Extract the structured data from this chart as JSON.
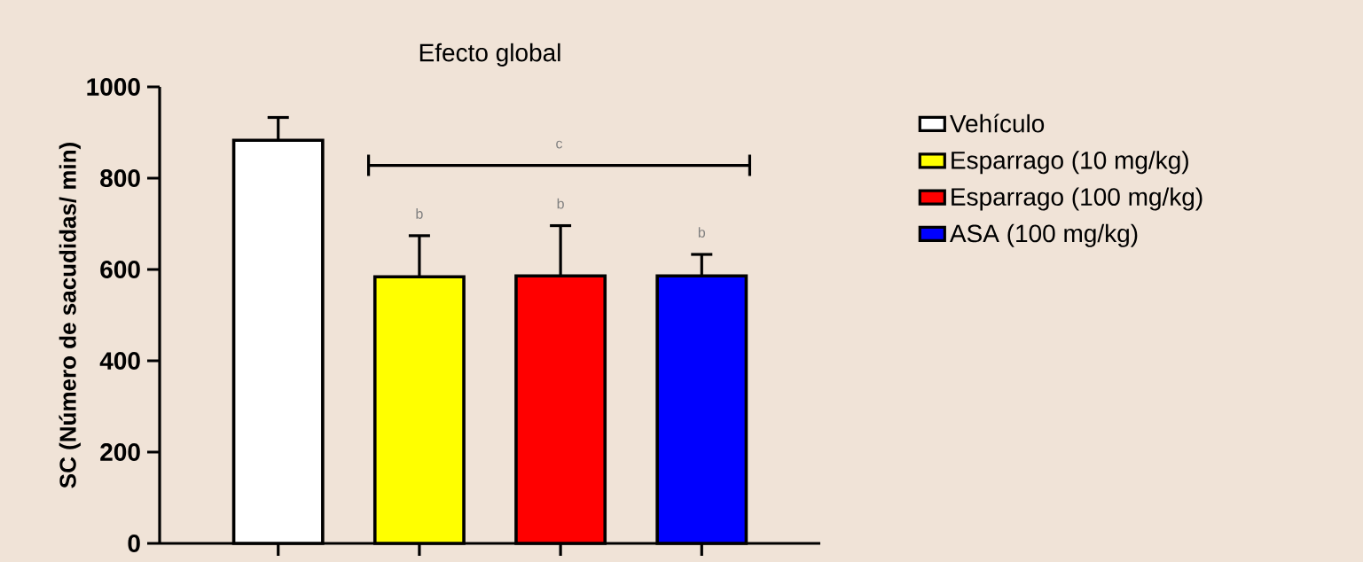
{
  "chart_data": {
    "type": "bar",
    "title": "Efecto global",
    "ylabel": "SC (Número de sacudidas/ min)",
    "categories": [
      null,
      null,
      null,
      null
    ],
    "series": [
      {
        "name": "Vehículo",
        "color": "#ffffff",
        "values": [
          883,
          null,
          null,
          null
        ],
        "errors": [
          50,
          null,
          null,
          null
        ]
      },
      {
        "name": "Esparrago (10 mg/kg)",
        "color": "#ffff00",
        "values": [
          null,
          584,
          null,
          null
        ],
        "errors": [
          null,
          90,
          null,
          null
        ]
      },
      {
        "name": "Esparrago (100 mg/kg)",
        "color": "#ff0000",
        "values": [
          null,
          null,
          586,
          null
        ],
        "errors": [
          null,
          null,
          110,
          null
        ]
      },
      {
        "name": "ASA (100 mg/kg)",
        "color": "#0000ff",
        "values": [
          null,
          null,
          null,
          586
        ],
        "errors": [
          null,
          null,
          null,
          47
        ]
      }
    ],
    "ylim": [
      0,
      1000
    ],
    "yticks": [
      0,
      200,
      400,
      600,
      800,
      1000
    ],
    "annotations": [
      "b",
      "b",
      "b",
      "c"
    ],
    "grid": false,
    "legend": "right"
  }
}
